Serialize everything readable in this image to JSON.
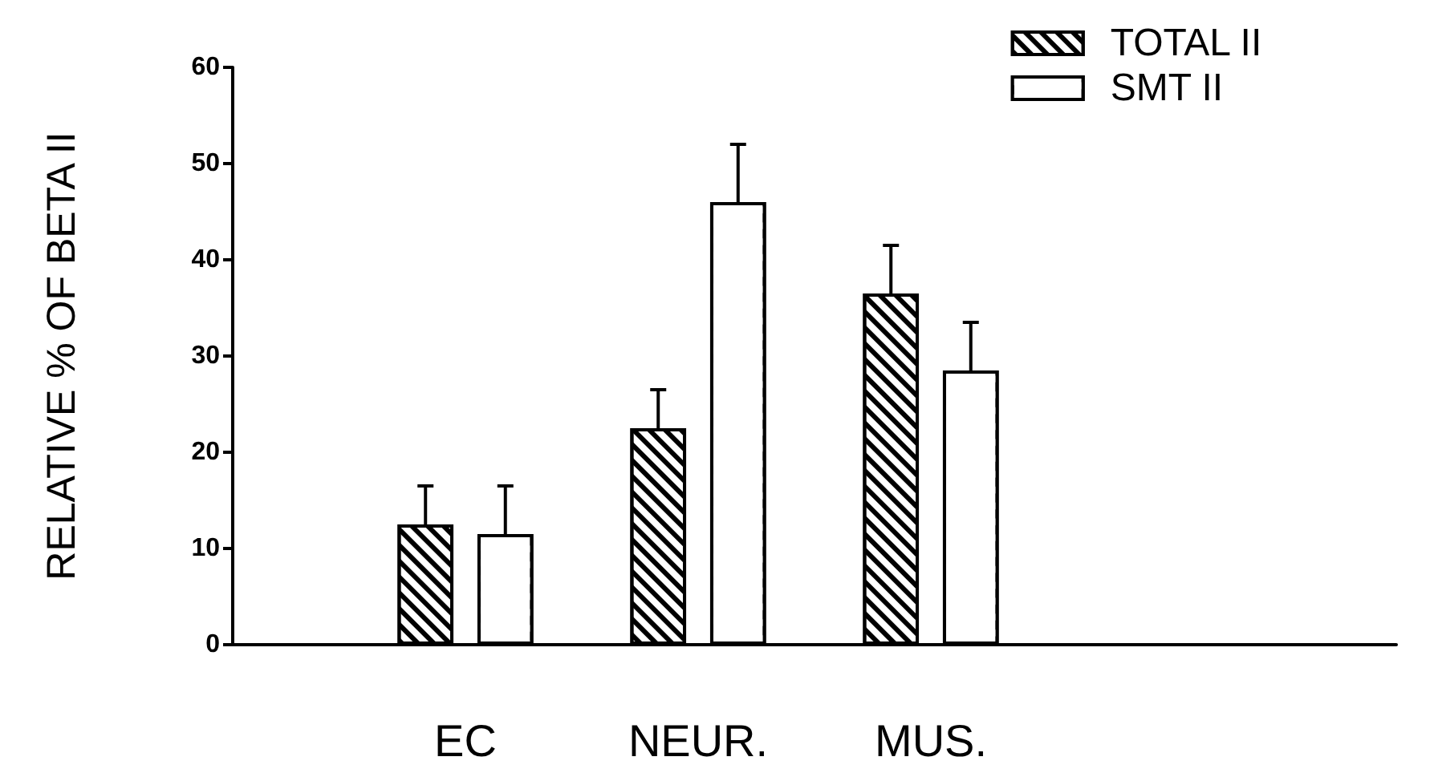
{
  "chart_data": {
    "type": "bar",
    "ylabel": "RELATIVE % OF BETA II",
    "categories": [
      "EC",
      "NEUR.",
      "MUS."
    ],
    "series": [
      {
        "name": "TOTAL II",
        "color": "#000000",
        "values": [
          12.5,
          22.5,
          36.5
        ],
        "errors": [
          [
            12.5,
            16.5
          ],
          [
            22.5,
            26.5
          ],
          [
            36.5,
            41.5
          ]
        ]
      },
      {
        "name": "SMT II",
        "color": "#ffffff",
        "values": [
          11.5,
          46,
          28.5
        ],
        "errors": [
          [
            11.5,
            16.5
          ],
          [
            46,
            52
          ],
          [
            28.5,
            33.5
          ]
        ]
      }
    ],
    "ylim": [
      0,
      60
    ],
    "yticks": [
      0,
      10,
      20,
      30,
      40,
      50,
      60
    ],
    "grid": false,
    "legend": "top right"
  }
}
